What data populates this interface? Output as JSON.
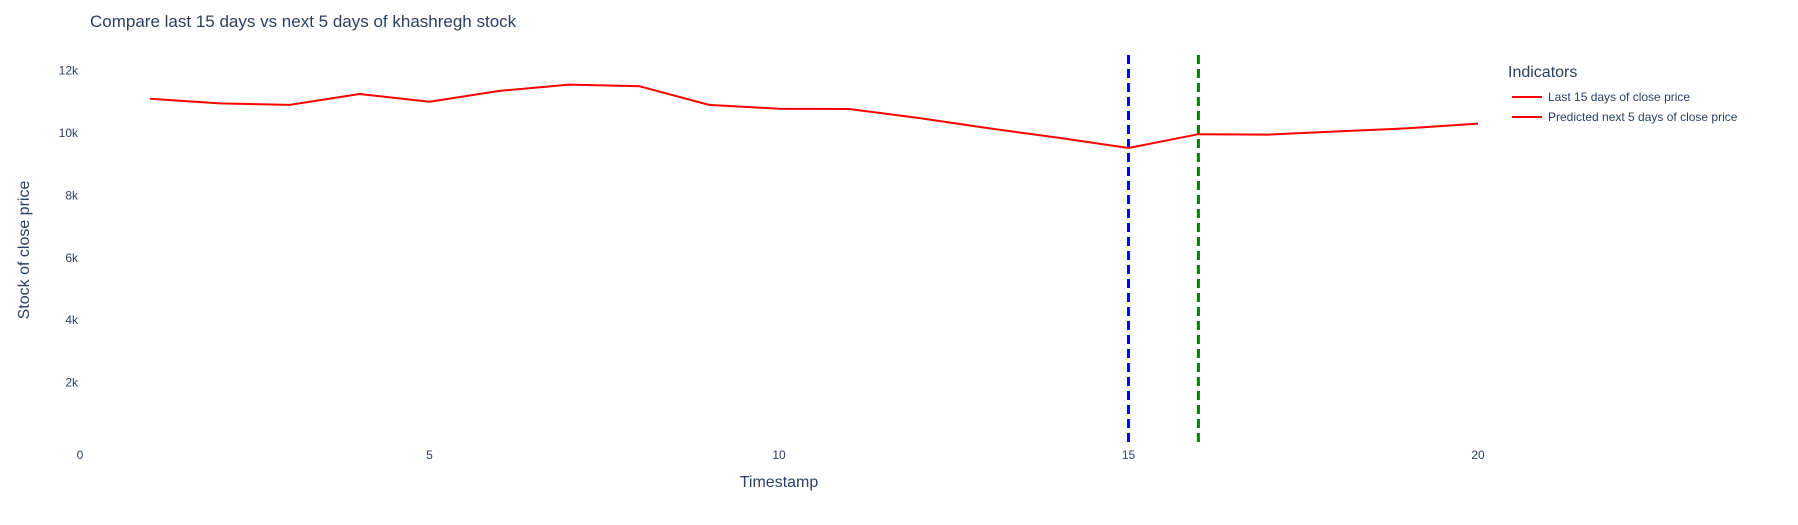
{
  "chart_data": {
    "type": "line",
    "title": "Compare last 15 days vs next 5 days of khashregh stock",
    "xlabel": "Timestamp",
    "ylabel": "Stock of close price",
    "xlim": [
      0,
      20
    ],
    "ylim": [
      0,
      12500
    ],
    "x_ticks": [
      0,
      5,
      10,
      15,
      20
    ],
    "x_tick_labels": [
      "0",
      "5",
      "10",
      "15",
      "20"
    ],
    "y_ticks": [
      2000,
      4000,
      6000,
      8000,
      10000,
      12000
    ],
    "y_tick_labels": [
      "2k",
      "4k",
      "6k",
      "8k",
      "10k",
      "12k"
    ],
    "grid": false,
    "legend": {
      "title": "Indicators",
      "position": "right"
    },
    "series": [
      {
        "name": "Last 15 days of close price",
        "color": "#ff0000",
        "x": [
          1,
          2,
          3,
          4,
          5,
          6,
          7,
          8,
          9,
          10,
          11,
          12,
          13,
          14,
          15
        ],
        "y": [
          11100,
          10950,
          10900,
          11250,
          11000,
          11350,
          11550,
          11500,
          10900,
          10780,
          10770,
          10480,
          10150,
          9850,
          9520
        ]
      },
      {
        "name": "Predicted next 5 days of close price",
        "color": "#ff0000",
        "x": [
          15,
          16,
          17,
          18,
          19,
          20
        ],
        "y": [
          9520,
          9960,
          9950,
          10050,
          10150,
          10300
        ]
      }
    ],
    "vlines": [
      {
        "x": 15,
        "color": "#0000ff",
        "dash": "dashed"
      },
      {
        "x": 16,
        "color": "#008000",
        "dash": "dashed"
      }
    ]
  }
}
